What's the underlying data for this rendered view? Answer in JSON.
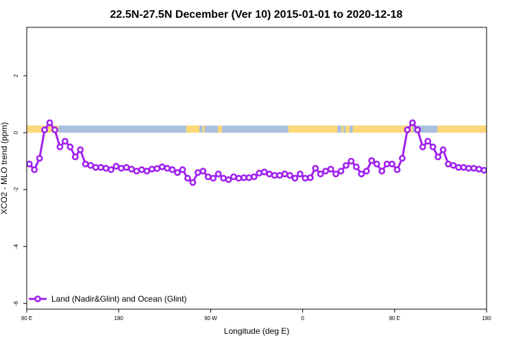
{
  "chart_data": {
    "type": "line",
    "title": "22.5N-27.5N December (Ver 10)   2015-01-01 to 2020-12-18",
    "xlabel": "Longitude (deg E)",
    "ylabel": "XCO2 - MLO trend (ppm)",
    "xlim": [
      90,
      540
    ],
    "ylim": [
      -6.2,
      3.7
    ],
    "x_ticks": [
      {
        "value": 90,
        "label": "90 E"
      },
      {
        "value": 180,
        "label": "180"
      },
      {
        "value": 270,
        "label": "90 W"
      },
      {
        "value": 360,
        "label": "0"
      },
      {
        "value": 450,
        "label": "90 E"
      },
      {
        "value": 540,
        "label": "180"
      }
    ],
    "y_ticks": [
      {
        "value": 2,
        "label": "2"
      },
      {
        "value": 0,
        "label": "0"
      },
      {
        "value": -2,
        "label": "-2"
      },
      {
        "value": -4,
        "label": "-4"
      },
      {
        "value": -6,
        "label": "-6"
      }
    ],
    "band": {
      "y_min": 0,
      "y_max": 0.25,
      "ocean_color": "#a9bfdd",
      "land_color": "#fcd878",
      "land_segments": [
        [
          90,
          121
        ],
        [
          246,
          259
        ],
        [
          262,
          264
        ],
        [
          277,
          281
        ],
        [
          346,
          394
        ],
        [
          398,
          400
        ],
        [
          402,
          406
        ],
        [
          409,
          468
        ],
        [
          492,
          540
        ]
      ]
    },
    "series": [
      {
        "name": "Land (Nadir&Glint) and Ocean (Glint)",
        "color": "#a020f0",
        "x": [
          92.5,
          97.5,
          102.5,
          107.5,
          112.5,
          117.5,
          122.5,
          127.5,
          132.5,
          137.5,
          142.5,
          147.5,
          152.5,
          157.5,
          162.5,
          167.5,
          172.5,
          177.5,
          182.5,
          187.5,
          192.5,
          197.5,
          202.5,
          207.5,
          212.5,
          217.5,
          222.5,
          227.5,
          232.5,
          237.5,
          242.5,
          247.5,
          252.5,
          257.5,
          262.5,
          267.5,
          272.5,
          277.5,
          282.5,
          287.5,
          292.5,
          297.5,
          302.5,
          307.5,
          312.5,
          317.5,
          322.5,
          327.5,
          332.5,
          337.5,
          342.5,
          347.5,
          352.5,
          357.5,
          362.5,
          367.5,
          372.5,
          377.5,
          382.5,
          387.5,
          392.5,
          397.5,
          402.5,
          407.5,
          412.5,
          417.5,
          422.5,
          427.5,
          432.5,
          437.5,
          442.5,
          447.5,
          452.5,
          457.5,
          462.5,
          467.5,
          472.5,
          477.5,
          482.5,
          487.5,
          492.5,
          497.5,
          502.5,
          507.5,
          512.5,
          517.5,
          522.5,
          527.5,
          532.5,
          537.5
        ],
        "values": [
          -1.1,
          -1.3,
          -0.9,
          0.1,
          0.35,
          0.1,
          -0.5,
          -0.3,
          -0.5,
          -0.85,
          -0.6,
          -1.1,
          -1.15,
          -1.22,
          -1.22,
          -1.25,
          -1.3,
          -1.18,
          -1.25,
          -1.22,
          -1.28,
          -1.35,
          -1.3,
          -1.35,
          -1.28,
          -1.26,
          -1.2,
          -1.25,
          -1.3,
          -1.4,
          -1.3,
          -1.6,
          -1.75,
          -1.4,
          -1.35,
          -1.55,
          -1.6,
          -1.45,
          -1.6,
          -1.65,
          -1.55,
          -1.6,
          -1.58,
          -1.58,
          -1.55,
          -1.42,
          -1.38,
          -1.45,
          -1.5,
          -1.5,
          -1.45,
          -1.5,
          -1.6,
          -1.45,
          -1.6,
          -1.58,
          -1.25,
          -1.45,
          -1.35,
          -1.28,
          -1.45,
          -1.35,
          -1.15,
          -1.0,
          -1.2,
          -1.45,
          -1.35,
          -0.98,
          -1.1,
          -1.35,
          -1.1,
          -1.1,
          -1.3,
          -0.9,
          0.1,
          0.35,
          0.1,
          -0.5,
          -0.3,
          -0.5,
          -0.85,
          -0.6,
          -1.1,
          -1.15,
          -1.22,
          -1.22,
          -1.25,
          -1.25,
          -1.28,
          -1.32
        ]
      }
    ],
    "legend": {
      "placement": "bottom-left",
      "label": "Land (Nadir&Glint) and Ocean (Glint)"
    }
  }
}
